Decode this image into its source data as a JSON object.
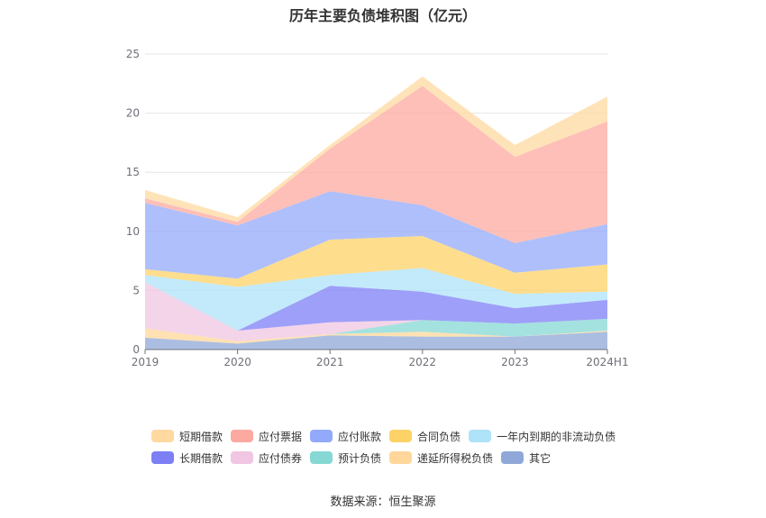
{
  "source_label": "数据来源：恒生聚源",
  "chart_data": {
    "type": "area",
    "stacked": true,
    "title": "历年主要负债堆积图（亿元）",
    "categories": [
      "2019",
      "2020",
      "2021",
      "2022",
      "2023",
      "2024H1"
    ],
    "y_ticks": [
      "0",
      "5",
      "10",
      "15",
      "20",
      "25"
    ],
    "ylim": [
      0,
      25
    ],
    "grid": true,
    "legend_position": "bottom",
    "series": [
      {
        "name": "其它",
        "color": "#8fa8d8",
        "values": [
          1.0,
          0.5,
          1.2,
          1.1,
          1.1,
          1.5
        ]
      },
      {
        "name": "递延所得税负债",
        "color": "#ffd79a",
        "values": [
          0.8,
          0.2,
          0.1,
          0.4,
          0.0,
          0.1
        ]
      },
      {
        "name": "预计负债",
        "color": "#85d8d4",
        "values": [
          0.0,
          0.0,
          0.0,
          1.0,
          1.1,
          1.0
        ]
      },
      {
        "name": "应付债券",
        "color": "#f0c6e2",
        "values": [
          3.9,
          0.9,
          1.0,
          0.0,
          0.0,
          0.0
        ]
      },
      {
        "name": "长期借款",
        "color": "#7d7ff5",
        "values": [
          0.0,
          0.0,
          3.1,
          2.4,
          1.3,
          1.6
        ]
      },
      {
        "name": "一年内到期的非流动负债",
        "color": "#aee3fa",
        "values": [
          0.6,
          3.7,
          0.9,
          2.0,
          1.2,
          0.7
        ]
      },
      {
        "name": "合同负债",
        "color": "#fdd267",
        "values": [
          0.5,
          0.7,
          3.0,
          2.7,
          1.8,
          2.3
        ]
      },
      {
        "name": "应付账款",
        "color": "#93a9fb",
        "values": [
          5.6,
          4.5,
          4.1,
          2.6,
          2.5,
          3.4
        ]
      },
      {
        "name": "应付票据",
        "color": "#fca9a0",
        "values": [
          0.4,
          0.3,
          3.6,
          10.1,
          7.3,
          8.7
        ]
      },
      {
        "name": "短期借款",
        "color": "#ffd9a0",
        "values": [
          0.7,
          0.4,
          0.3,
          0.8,
          1.0,
          2.1
        ]
      }
    ]
  }
}
